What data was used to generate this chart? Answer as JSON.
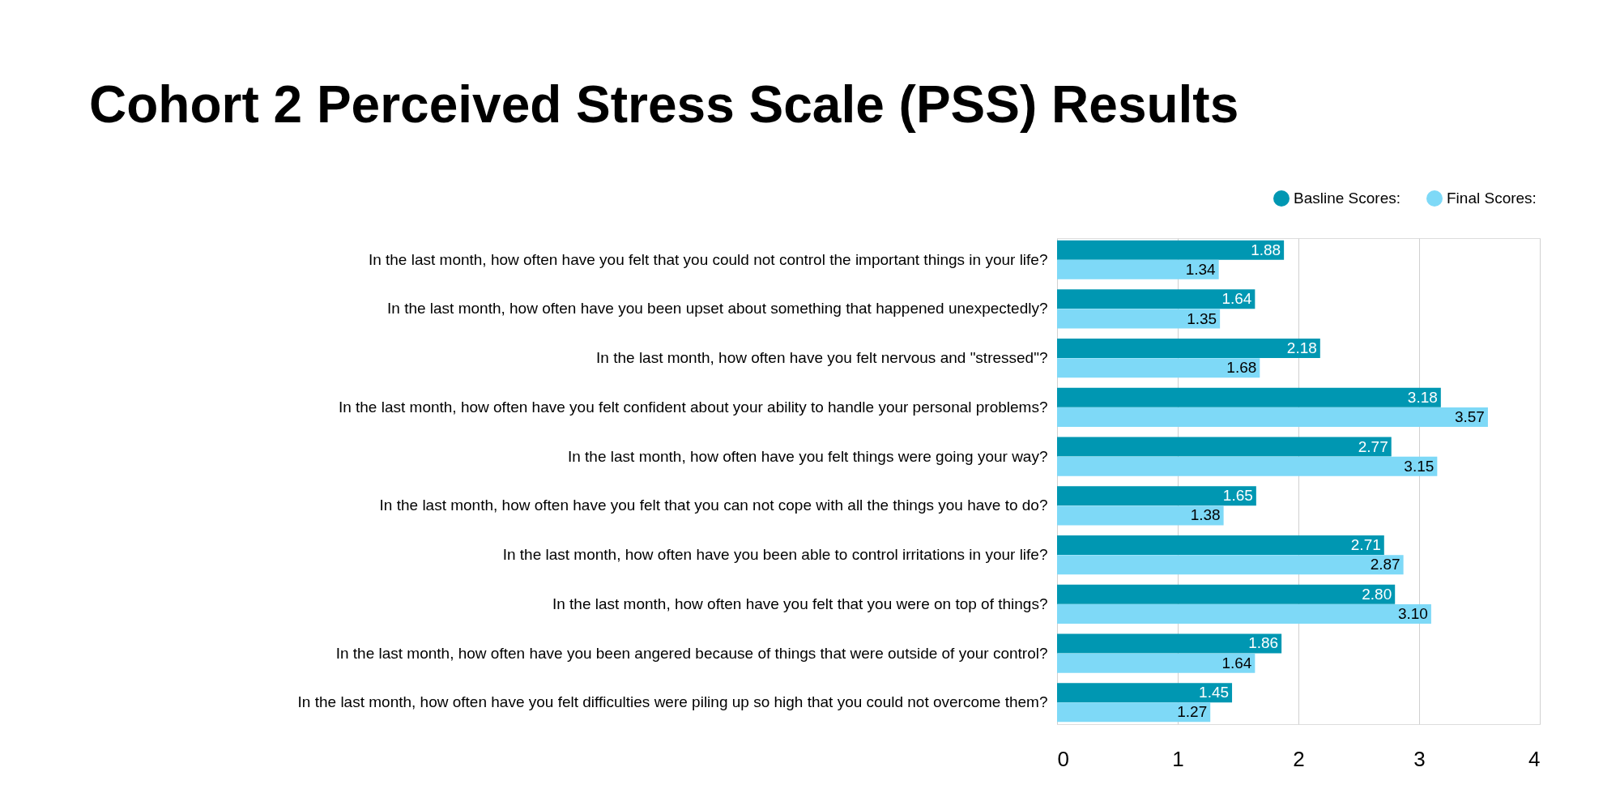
{
  "chart_data": {
    "type": "bar",
    "orientation": "horizontal",
    "title": "Cohort 2 Perceived Stress Scale (PSS) Results",
    "categories": [
      "In the last month, how often have you felt that you could not control the important things in your life?",
      "In the last month, how often have you been upset about something that happened unexpectedly?",
      "In the last month, how often have you felt nervous and \"stressed\"?",
      "In the last month, how often have you felt confident about your ability to handle your personal problems?",
      "In the last month, how often have you felt things were going your way?",
      "In the last month, how often have you felt that you can not cope with all the things you have to do?",
      "In the last month, how often have you been able to control irritations in your life?",
      "In the last month, how often have you felt that you were on top of things?",
      "In the last month, how often have you been angered because of things that were outside of your control?",
      "In the last month, how often have you felt difficulties were piling up so high that you could not overcome them?"
    ],
    "series": [
      {
        "name": "Basline Scores:",
        "color": "#0097b2",
        "values": [
          1.88,
          1.64,
          2.18,
          3.18,
          2.77,
          1.65,
          2.71,
          2.8,
          1.86,
          1.45
        ],
        "value_labels": [
          "1.88",
          "1.64",
          "2.18",
          "3.18",
          "2.77",
          "1.65",
          "2.71",
          "2.80",
          "1.86",
          "1.45"
        ]
      },
      {
        "name": "Final Scores:",
        "color": "#7ed9f7",
        "values": [
          1.34,
          1.35,
          1.68,
          3.57,
          3.15,
          1.38,
          2.87,
          3.1,
          1.64,
          1.27
        ],
        "value_labels": [
          "1.34",
          "1.35",
          "1.68",
          "3.57",
          "3.15",
          "1.38",
          "2.87",
          "3.10",
          "1.64",
          "1.27"
        ]
      }
    ],
    "xlim": [
      0,
      4
    ],
    "xticks": [
      0,
      1,
      2,
      3,
      4
    ],
    "grid": "x",
    "legend": "top right"
  }
}
